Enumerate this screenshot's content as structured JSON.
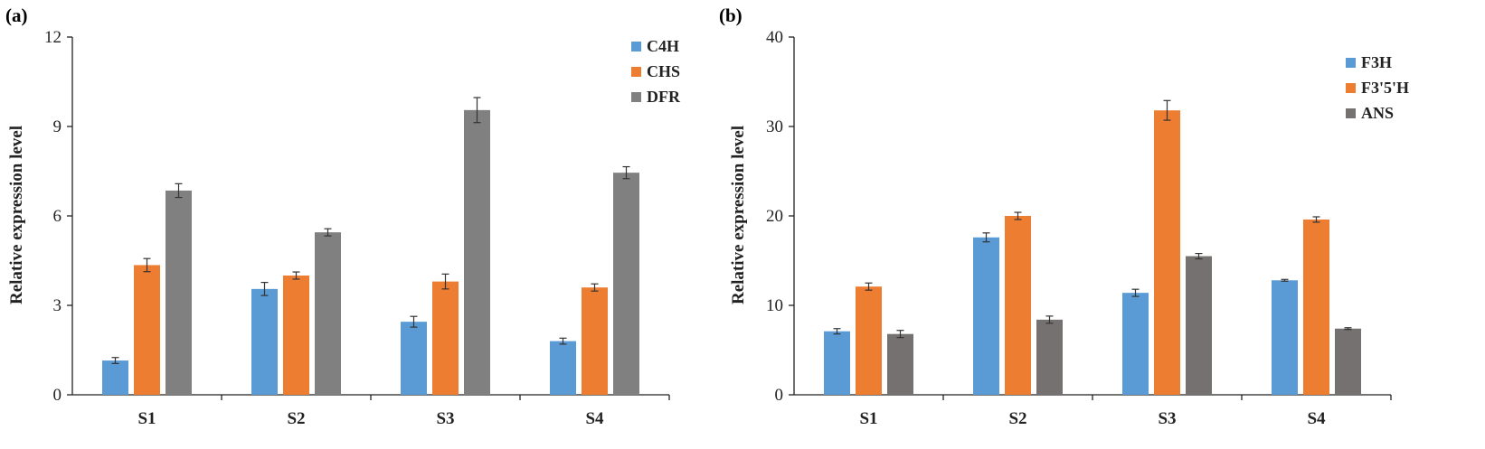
{
  "chart_data": [
    {
      "type": "bar",
      "panel_label": "(a)",
      "title": "",
      "xlabel": "",
      "ylabel": "Relative expression level",
      "categories": [
        "S1",
        "S2",
        "S3",
        "S4"
      ],
      "ylim": [
        0,
        12
      ],
      "yticks": [
        0,
        3,
        6,
        9,
        12
      ],
      "legend_position": "top-right",
      "grid": false,
      "series": [
        {
          "name": "C4H",
          "color": "#5B9BD5",
          "values": [
            1.15,
            3.55,
            2.45,
            1.8
          ],
          "errors": [
            0.1,
            0.22,
            0.18,
            0.1
          ]
        },
        {
          "name": "CHS",
          "color": "#ED7D31",
          "values": [
            4.35,
            4.0,
            3.8,
            3.6
          ],
          "errors": [
            0.22,
            0.12,
            0.25,
            0.12
          ]
        },
        {
          "name": "DFR",
          "color": "#808080",
          "values": [
            6.85,
            5.45,
            9.55,
            7.45
          ],
          "errors": [
            0.23,
            0.12,
            0.42,
            0.2
          ]
        }
      ]
    },
    {
      "type": "bar",
      "panel_label": "(b)",
      "title": "",
      "xlabel": "",
      "ylabel": "Relative expression level",
      "categories": [
        "S1",
        "S2",
        "S3",
        "S4"
      ],
      "ylim": [
        0,
        40
      ],
      "yticks": [
        0,
        10,
        20,
        30,
        40
      ],
      "legend_position": "top-right",
      "grid": false,
      "series": [
        {
          "name": "F3H",
          "color": "#5B9BD5",
          "values": [
            7.1,
            17.6,
            11.4,
            12.8
          ],
          "errors": [
            0.3,
            0.5,
            0.4,
            0.1
          ]
        },
        {
          "name": "F3'5'H",
          "color": "#ED7D31",
          "values": [
            12.1,
            20.0,
            31.8,
            19.6
          ],
          "errors": [
            0.4,
            0.4,
            1.1,
            0.3
          ]
        },
        {
          "name": "ANS",
          "color": "#767171",
          "values": [
            6.8,
            8.4,
            15.5,
            7.4
          ],
          "errors": [
            0.4,
            0.4,
            0.3,
            0.1
          ]
        }
      ]
    }
  ]
}
